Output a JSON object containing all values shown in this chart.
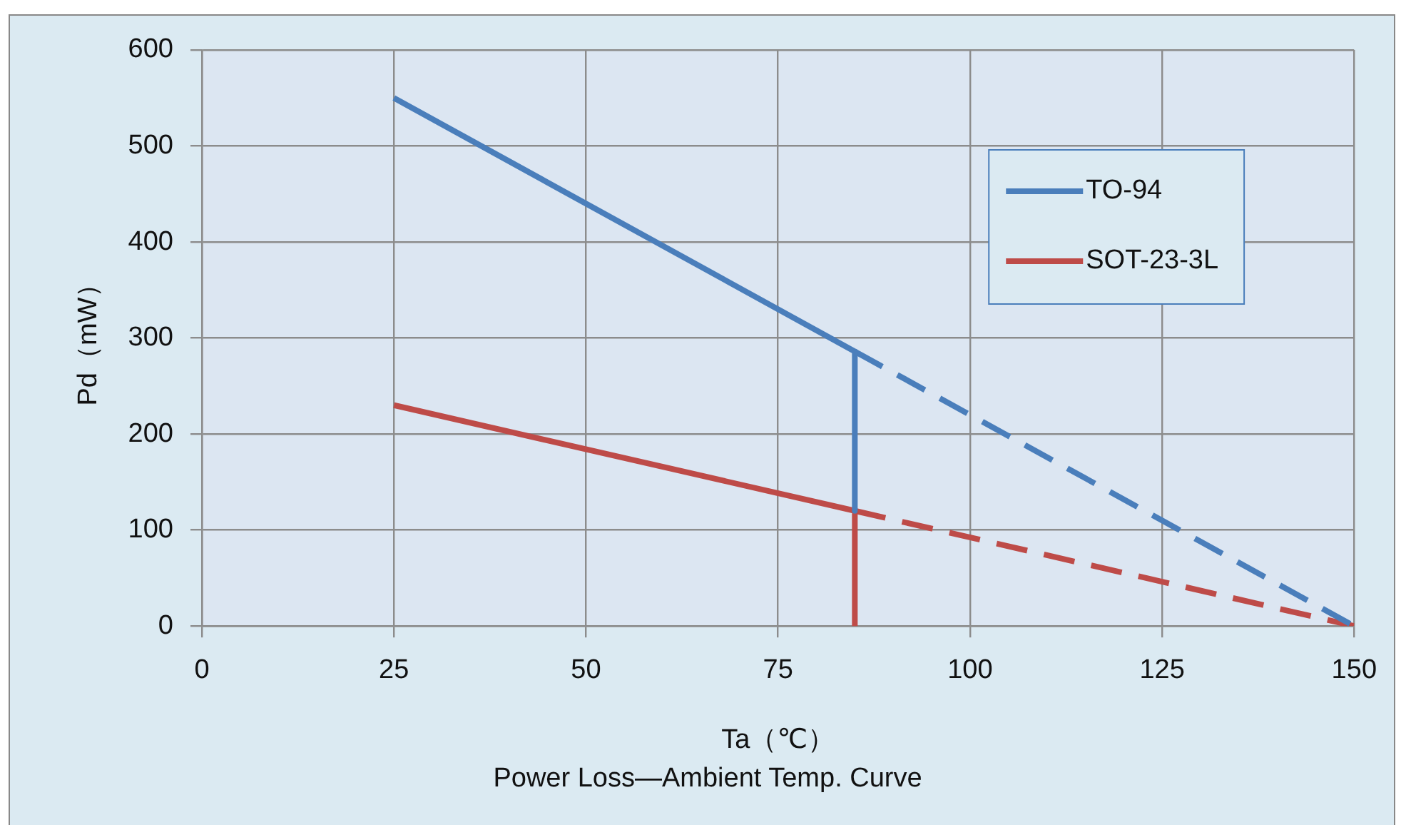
{
  "chart_data": {
    "type": "line",
    "title": "Power Loss—Ambient Temp. Curve",
    "xlabel": "Ta（℃）",
    "ylabel": "Pd（mW）",
    "xlim": [
      0,
      150
    ],
    "xticks": [
      0,
      25,
      50,
      75,
      100,
      125,
      150
    ],
    "ylim": [
      0,
      600
    ],
    "yticks": [
      0,
      100,
      200,
      300,
      400,
      500,
      600
    ],
    "grid": true,
    "legend": "top right",
    "marker": "none",
    "series": [
      {
        "name": "TO-94",
        "color": "#4a7ebb",
        "x": [
          25,
          85,
          85
        ],
        "values": [
          550,
          286,
          120
        ],
        "line_style": "solid"
      },
      {
        "name": "SOT-23-3L",
        "color": "#be4b48",
        "x": [
          25,
          85,
          85
        ],
        "values": [
          230,
          120,
          0
        ],
        "line_style": "solid"
      },
      {
        "color": "#4a7ebb",
        "x": [
          85,
          150
        ],
        "values": [
          286,
          0
        ],
        "line_style": "dashed"
      },
      {
        "color": "#be4b48",
        "x": [
          85,
          150
        ],
        "values": [
          120,
          0
        ],
        "line_style": "dashed"
      }
    ]
  }
}
